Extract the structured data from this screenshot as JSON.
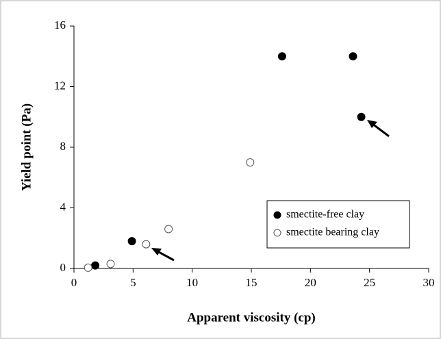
{
  "chart_data": {
    "type": "scatter",
    "xlabel": "Apparent viscosity (cp)",
    "ylabel": "Yield point (Pa)",
    "xlim": [
      0,
      30
    ],
    "xticks": [
      0,
      5,
      10,
      15,
      20,
      25,
      30
    ],
    "ylim": [
      0,
      16
    ],
    "yticks": [
      0,
      4,
      8,
      12,
      16
    ],
    "grid": false,
    "legend": "lower right",
    "series": [
      {
        "name": "smectite-free clay",
        "color": "#000000",
        "fill": "#000000",
        "x": [
          1.8,
          4.9,
          17.6,
          23.6,
          24.3
        ],
        "values": [
          0.2,
          1.8,
          14,
          14,
          10
        ]
      },
      {
        "name": "smectite bearing clay",
        "color": "#555555",
        "fill": "#ffffff",
        "x": [
          1.2,
          3.1,
          6.1,
          8.0,
          14.9
        ],
        "values": [
          0.05,
          0.3,
          1.6,
          2.6,
          7.0
        ]
      }
    ]
  }
}
